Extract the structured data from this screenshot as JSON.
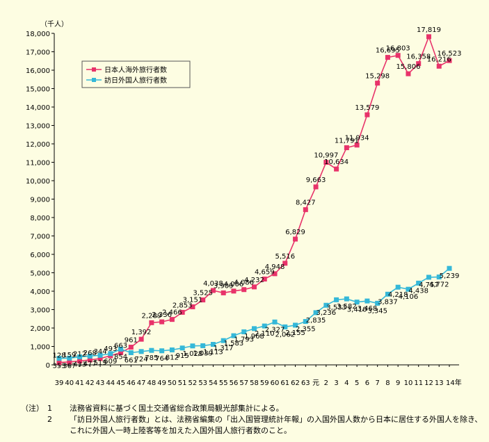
{
  "chart_data": {
    "type": "line",
    "unit_label": "（千人）",
    "ylim": [
      0,
      18000
    ],
    "ytick_step": 1000,
    "x": [
      "39",
      "40",
      "41",
      "42",
      "43",
      "44",
      "45",
      "46",
      "47",
      "48",
      "49",
      "50",
      "51",
      "52",
      "53",
      "54",
      "55",
      "56",
      "57",
      "58",
      "59",
      "60",
      "61",
      "62",
      "63",
      "元",
      "2",
      "3",
      "4",
      "5",
      "6",
      "7",
      "8",
      "9",
      "10",
      "11",
      "12",
      "13",
      "14年"
    ],
    "series": [
      {
        "name": "日本人海外旅行者数",
        "color": "#e8336a",
        "values": [
          128,
          159,
          212,
          268,
          344,
          493,
          663,
          961,
          1392,
          2289,
          2336,
          2466,
          2853,
          3151,
          3525,
          4038,
          3909,
          4006,
          4086,
          4232,
          4659,
          4948,
          5516,
          6829,
          8427,
          9663,
          10997,
          10634,
          11791,
          11934,
          13579,
          15298,
          16695,
          16803,
          15806,
          16358,
          17819,
          16216,
          16523
        ],
        "labels": [
          "128",
          "159",
          "212",
          "268",
          "344",
          "493",
          "663",
          "961",
          "1,392",
          "2,289",
          "2,336",
          "2,466",
          "2,853",
          "3,151",
          "3,525",
          "4,038",
          "3,909",
          "4,006",
          "4,086",
          "4,232",
          "4,659",
          "4,948",
          "5,516",
          "6,829",
          "8,427",
          "9,663",
          "10,997",
          "10,634",
          "11,791",
          "11,934",
          "13,579",
          "15,298",
          "16,695",
          "16,803",
          "15,806",
          "16,358",
          "17,819",
          "16,216",
          "16,523"
        ]
      },
      {
        "name": "訪日外国人旅行者数",
        "color": "#35b8d8",
        "values": [
          353,
          367,
          433,
          477,
          519,
          609,
          854,
          661,
          724,
          785,
          764,
          812,
          915,
          1028,
          1039,
          1113,
          1317,
          1583,
          1793,
          1968,
          2110,
          2327,
          2062,
          2155,
          2355,
          2835,
          3236,
          3533,
          3582,
          3410,
          3468,
          3345,
          3837,
          4218,
          4106,
          4438,
          4757,
          4772,
          5239
        ],
        "labels": [
          "353",
          "367",
          "433",
          "477",
          "519",
          "609",
          "854",
          "661",
          "724",
          "785",
          "764",
          "812",
          "915",
          "1,028",
          "1,039",
          "1,113",
          "1,317",
          "1,583",
          "1,793",
          "1,968",
          "2,110",
          "2,327",
          "2,062",
          "2,155",
          "2,355",
          "2,835",
          "3,236",
          "3,533",
          "3,582",
          "3,410",
          "3,468",
          "3,345",
          "3,837",
          "4,218",
          "4,106",
          "4,438",
          "4,757",
          "4,772",
          "5,239"
        ]
      }
    ],
    "legend_position": "top-left",
    "grid": false
  },
  "notes": [
    {
      "mark": "（注）",
      "num": "1",
      "text": "法務省資料に基づく国土交通省総合政策局観光部集計による。"
    },
    {
      "mark": "",
      "num": "2",
      "text": "「訪日外国人旅行者数」とは、法務省編集の「出入国管理統計年報」の入国外国人数から日本に居住する外国人を除き、これに外国人一時上陸客等を加えた入国外国人旅行者数のこと。"
    }
  ]
}
